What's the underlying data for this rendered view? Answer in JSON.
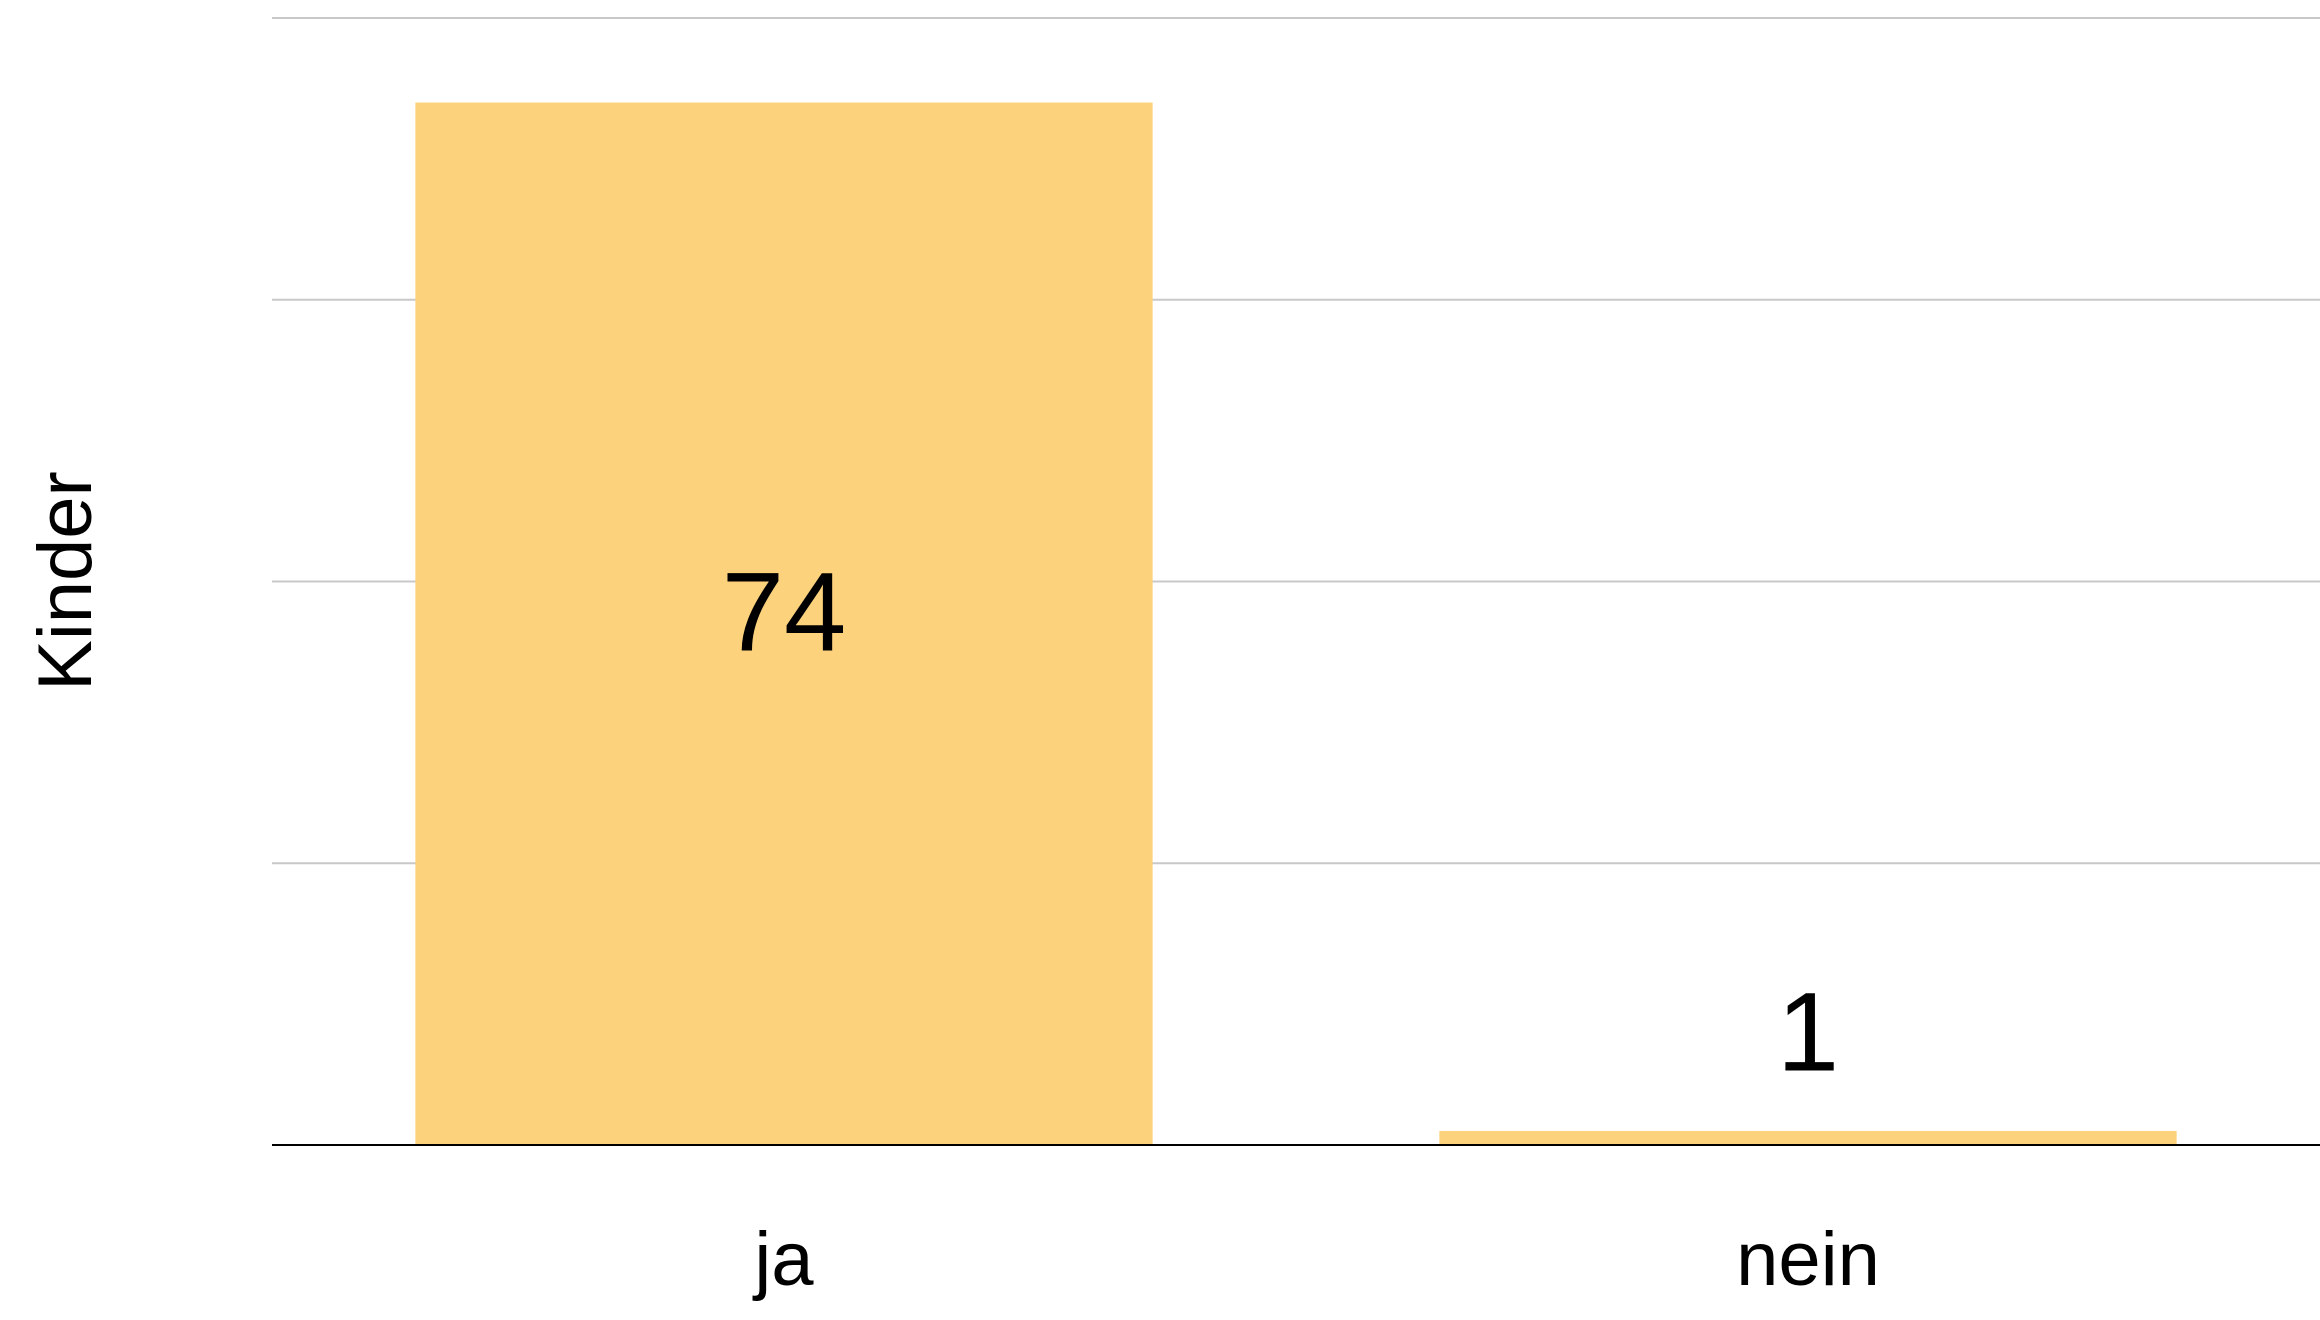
{
  "chart_data": {
    "type": "bar",
    "ylabel": "Kinder",
    "categories": [
      "ja",
      "nein"
    ],
    "values": [
      74,
      1
    ],
    "color": "#fcd37c",
    "ylim": [
      0,
      80
    ],
    "yticks": [
      0,
      20,
      40,
      60,
      80
    ],
    "grid": true
  }
}
